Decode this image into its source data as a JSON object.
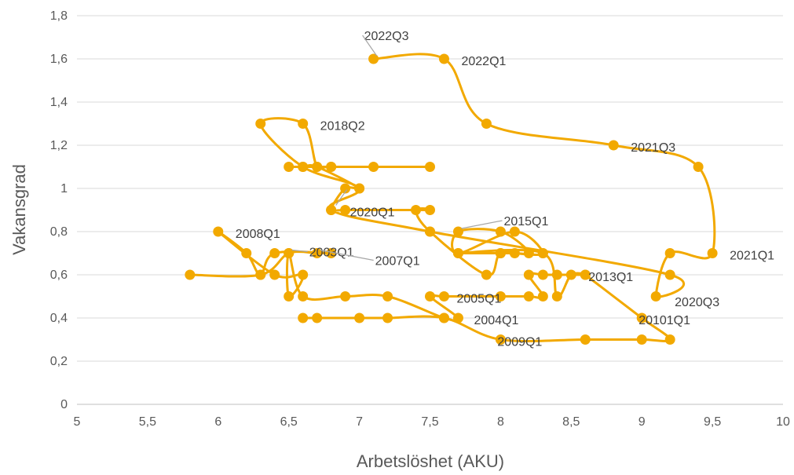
{
  "chart_data": {
    "type": "scatter",
    "title": "",
    "xlabel": "Arbetslöshet (AKU)",
    "ylabel": "Vakansgrad",
    "xlim": [
      5,
      10
    ],
    "ylim": [
      0,
      1.8
    ],
    "x_ticks": [
      "5",
      "5,5",
      "6",
      "6,5",
      "7",
      "7,5",
      "8",
      "8,5",
      "9",
      "9,5",
      "10"
    ],
    "y_ticks": [
      "0",
      "0,2",
      "0,4",
      "0,6",
      "0,8",
      "1",
      "1,2",
      "1,4",
      "1,6",
      "1,8"
    ],
    "grid": "horizontal",
    "series_color": "#f2a900",
    "series": [
      {
        "points": [
          [
            5.8,
            0.6
          ],
          [
            6.3,
            0.6
          ],
          [
            6.5,
            0.7
          ],
          [
            6.7,
            0.7
          ],
          [
            6.8,
            0.7
          ],
          [
            6.4,
            0.7
          ],
          [
            6.3,
            0.6
          ],
          [
            6.2,
            0.7
          ],
          [
            6.0,
            0.8
          ],
          [
            6.4,
            0.6
          ],
          [
            6.6,
            0.6
          ],
          [
            6.5,
            0.5
          ],
          [
            6.5,
            0.7
          ],
          [
            6.6,
            0.5
          ],
          [
            6.9,
            0.5
          ],
          [
            7.2,
            0.5
          ],
          [
            7.6,
            0.4
          ],
          [
            7.7,
            0.4
          ],
          [
            7.5,
            0.5
          ],
          [
            7.6,
            0.5
          ],
          [
            8.0,
            0.5
          ],
          [
            8.2,
            0.5
          ],
          [
            8.3,
            0.5
          ],
          [
            8.2,
            0.6
          ],
          [
            8.3,
            0.6
          ],
          [
            8.4,
            0.6
          ],
          [
            8.6,
            0.6
          ],
          [
            8.5,
            0.6
          ],
          [
            8.4,
            0.5
          ],
          [
            8.3,
            0.7
          ],
          [
            7.7,
            0.7
          ],
          [
            8.0,
            0.7
          ],
          [
            8.1,
            0.7
          ],
          [
            8.3,
            0.7
          ],
          [
            8.1,
            0.8
          ],
          [
            7.7,
            0.7
          ],
          [
            7.7,
            0.8
          ],
          [
            8.0,
            0.8
          ],
          [
            8.2,
            0.7
          ],
          [
            8.0,
            0.7
          ],
          [
            7.9,
            0.6
          ],
          [
            7.5,
            0.8
          ],
          [
            7.4,
            0.9
          ],
          [
            7.5,
            0.9
          ],
          [
            6.9,
            0.9
          ],
          [
            6.8,
            0.9
          ],
          [
            6.9,
            1.0
          ],
          [
            7.0,
            1.0
          ],
          [
            6.7,
            1.1
          ],
          [
            6.6,
            1.1
          ],
          [
            6.5,
            1.1
          ],
          [
            6.8,
            1.1
          ],
          [
            7.1,
            1.1
          ],
          [
            7.5,
            1.1
          ],
          [
            6.8,
            1.1
          ],
          [
            6.7,
            1.1
          ],
          [
            6.6,
            1.3
          ],
          [
            6.3,
            1.3
          ],
          [
            6.6,
            1.1
          ],
          [
            7.0,
            1.0
          ],
          [
            6.8,
            0.9
          ],
          [
            7.5,
            0.8
          ],
          [
            9.2,
            0.6
          ],
          [
            9.1,
            0.5
          ],
          [
            9.2,
            0.7
          ],
          [
            9.5,
            0.7
          ],
          [
            9.4,
            1.1
          ],
          [
            8.8,
            1.2
          ],
          [
            7.9,
            1.3
          ],
          [
            7.6,
            1.6
          ],
          [
            7.1,
            1.6
          ]
        ],
        "tail": [
          [
            6.6,
            0.4
          ],
          [
            6.7,
            0.4
          ],
          [
            7.0,
            0.4
          ],
          [
            7.2,
            0.4
          ],
          [
            7.6,
            0.4
          ],
          [
            8.0,
            0.3
          ],
          [
            8.6,
            0.3
          ],
          [
            9.0,
            0.3
          ],
          [
            9.2,
            0.3
          ],
          [
            9.0,
            0.4
          ],
          [
            8.6,
            0.6
          ]
        ]
      }
    ],
    "annotations": [
      {
        "text": "2022Q3",
        "x": 7.1,
        "y": 1.6
      },
      {
        "text": "2022Q1",
        "x": 7.6,
        "y": 1.6
      },
      {
        "text": "2018Q2",
        "x": 6.6,
        "y": 1.3
      },
      {
        "text": "2021Q3",
        "x": 8.8,
        "y": 1.2
      },
      {
        "text": "2020Q1",
        "x": 6.8,
        "y": 0.9
      },
      {
        "text": "2015Q1",
        "x": 7.7,
        "y": 0.8
      },
      {
        "text": "2008Q1",
        "x": 6.0,
        "y": 0.8
      },
      {
        "text": "2003Q1",
        "x": 6.5,
        "y": 0.7
      },
      {
        "text": "2007Q1",
        "x": 6.7,
        "y": 0.7
      },
      {
        "text": "2021Q1",
        "x": 9.5,
        "y": 0.7
      },
      {
        "text": "2013Q1",
        "x": 8.6,
        "y": 0.6
      },
      {
        "text": "2005Q1",
        "x": 7.6,
        "y": 0.5
      },
      {
        "text": "2020Q3",
        "x": 9.2,
        "y": 0.6
      },
      {
        "text": "2004Q1",
        "x": 7.7,
        "y": 0.4
      },
      {
        "text": "20101Q1",
        "x": 9.0,
        "y": 0.4
      },
      {
        "text": "2009Q1",
        "x": 8.0,
        "y": 0.3
      }
    ]
  }
}
